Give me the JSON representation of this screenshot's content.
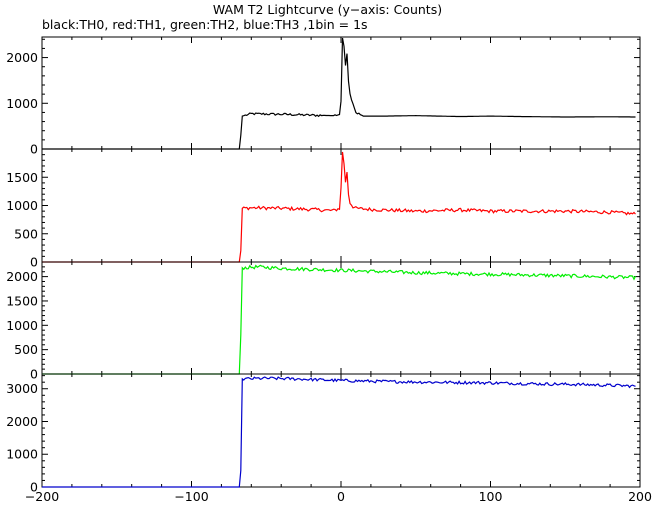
{
  "title": "WAM T2 Lightcurve (y−axis: Counts)",
  "subtitle": "black:TH0, red:TH1, green:TH2, blue:TH3 ,1bin = 1s",
  "chart_data": {
    "type": "line",
    "xlim": [
      -200,
      200
    ],
    "x_ticks": [
      -200,
      -100,
      0,
      100,
      200
    ],
    "grid": false,
    "panels": [
      {
        "name": "TH0",
        "color": "#000000",
        "ylim": [
          0,
          2450
        ],
        "y_ticks": [
          0,
          1000,
          2000
        ],
        "points": [
          [
            -200,
            0
          ],
          [
            -68,
            0
          ],
          [
            -67,
            300
          ],
          [
            -66,
            720
          ],
          [
            -60,
            770
          ],
          [
            -40,
            760
          ],
          [
            -20,
            740
          ],
          [
            -5,
            730
          ],
          [
            -1,
            760
          ],
          [
            0,
            1050
          ],
          [
            1,
            2450
          ],
          [
            2,
            2250
          ],
          [
            3,
            1850
          ],
          [
            4,
            2100
          ],
          [
            5,
            1500
          ],
          [
            6,
            1200
          ],
          [
            8,
            1000
          ],
          [
            10,
            800
          ],
          [
            15,
            720
          ],
          [
            30,
            720
          ],
          [
            50,
            730
          ],
          [
            80,
            710
          ],
          [
            100,
            720
          ],
          [
            120,
            710
          ],
          [
            150,
            700
          ],
          [
            180,
            705
          ],
          [
            197,
            700
          ]
        ],
        "noise": 25
      },
      {
        "name": "TH1",
        "color": "#ff0000",
        "ylim": [
          0,
          2000
        ],
        "y_ticks": [
          0,
          500,
          1000,
          1500
        ],
        "points": [
          [
            -200,
            0
          ],
          [
            -68,
            0
          ],
          [
            -67,
            200
          ],
          [
            -66,
            950
          ],
          [
            -60,
            960
          ],
          [
            -40,
            950
          ],
          [
            -20,
            930
          ],
          [
            -5,
            910
          ],
          [
            -1,
            950
          ],
          [
            0,
            1300
          ],
          [
            1,
            1950
          ],
          [
            2,
            1750
          ],
          [
            3,
            1400
          ],
          [
            4,
            1600
          ],
          [
            5,
            1200
          ],
          [
            6,
            1050
          ],
          [
            8,
            980
          ],
          [
            10,
            950
          ],
          [
            20,
            930
          ],
          [
            50,
            900
          ],
          [
            80,
            920
          ],
          [
            100,
            900
          ],
          [
            120,
            900
          ],
          [
            150,
            900
          ],
          [
            180,
            880
          ],
          [
            197,
            850
          ]
        ],
        "noise": 30
      },
      {
        "name": "TH2",
        "color": "#00ee00",
        "ylim": [
          0,
          2300
        ],
        "y_ticks": [
          0,
          500,
          1000,
          1500,
          2000
        ],
        "points": [
          [
            -200,
            0
          ],
          [
            -68,
            0
          ],
          [
            -67,
            800
          ],
          [
            -66,
            2180
          ],
          [
            -55,
            2200
          ],
          [
            -40,
            2170
          ],
          [
            -20,
            2150
          ],
          [
            0,
            2130
          ],
          [
            20,
            2110
          ],
          [
            50,
            2080
          ],
          [
            80,
            2060
          ],
          [
            100,
            2050
          ],
          [
            130,
            2030
          ],
          [
            160,
            2010
          ],
          [
            197,
            1980
          ]
        ],
        "noise": 35
      },
      {
        "name": "TH3",
        "color": "#0000cc",
        "ylim": [
          0,
          3450
        ],
        "y_ticks": [
          0,
          1000,
          2000,
          3000
        ],
        "points": [
          [
            -200,
            0
          ],
          [
            -68,
            0
          ],
          [
            -67,
            500
          ],
          [
            -66,
            3300
          ],
          [
            -50,
            3320
          ],
          [
            -30,
            3300
          ],
          [
            0,
            3250
          ],
          [
            30,
            3220
          ],
          [
            60,
            3200
          ],
          [
            100,
            3180
          ],
          [
            130,
            3150
          ],
          [
            160,
            3130
          ],
          [
            197,
            3080
          ]
        ],
        "noise": 45
      }
    ]
  }
}
